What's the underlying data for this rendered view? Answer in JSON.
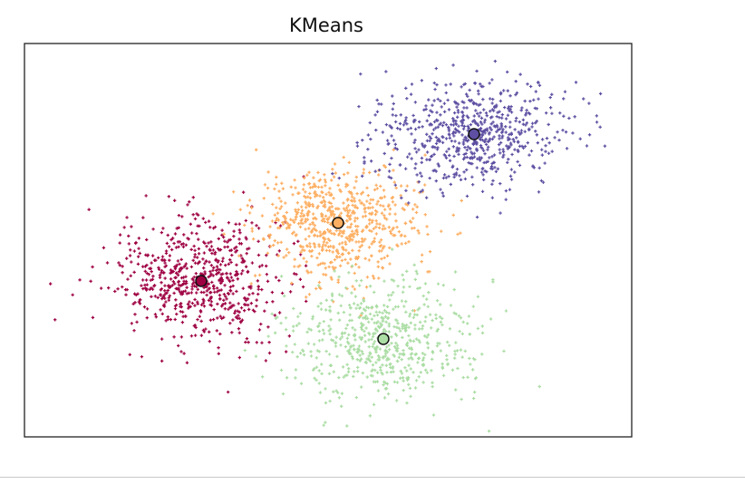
{
  "chart_data": {
    "type": "scatter",
    "title": "KMeans",
    "xlabel": "",
    "ylabel": "",
    "xlim": [
      0,
      670
    ],
    "ylim": [
      0,
      434
    ],
    "axis_ticks": false,
    "grid": false,
    "legend": "none",
    "colors": {
      "frame": "#222222",
      "centroid_edge": "#111111"
    },
    "clusters": [
      {
        "id": "cluster-0",
        "color": "#9e0142",
        "marker": "+",
        "n_points": 650,
        "center": [
          195,
          172
        ],
        "spread": [
          48,
          34
        ]
      },
      {
        "id": "cluster-1",
        "color": "#fdae61",
        "marker": "+",
        "n_points": 650,
        "center": [
          346,
          236
        ],
        "spread": [
          46,
          30
        ]
      },
      {
        "id": "cluster-2",
        "color": "#abdda4",
        "marker": "+",
        "n_points": 600,
        "center": [
          396,
          108
        ],
        "spread": [
          50,
          34
        ]
      },
      {
        "id": "cluster-3",
        "color": "#5e4fa2",
        "marker": "+",
        "n_points": 650,
        "center": [
          496,
          334
        ],
        "spread": [
          50,
          30
        ]
      }
    ],
    "centroids": [
      {
        "cluster": "cluster-0",
        "x": 195,
        "y": 172,
        "color": "#9e0142"
      },
      {
        "cluster": "cluster-1",
        "x": 346,
        "y": 236,
        "color": "#fdae61"
      },
      {
        "cluster": "cluster-2",
        "x": 396,
        "y": 108,
        "color": "#abdda4"
      },
      {
        "cluster": "cluster-3",
        "x": 496,
        "y": 334,
        "color": "#5e4fa2"
      }
    ]
  }
}
